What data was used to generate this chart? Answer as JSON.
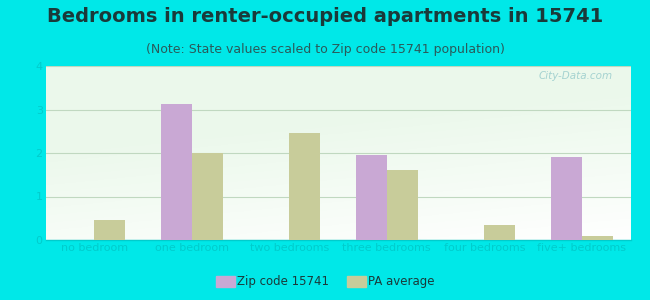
{
  "title": "Bedrooms in renter-occupied apartments in 15741",
  "subtitle": "(Note: State values scaled to Zip code 15741 population)",
  "categories": [
    "no bedroom",
    "one bedroom",
    "two bedrooms",
    "three bedrooms",
    "four bedrooms",
    "five+ bedrooms"
  ],
  "zip_values": [
    0,
    3.12,
    0,
    1.95,
    0,
    1.9
  ],
  "pa_values": [
    0.45,
    2.0,
    2.45,
    1.6,
    0.35,
    0.09
  ],
  "zip_color": "#c9a8d4",
  "pa_color": "#c8cc9a",
  "background_outer": "#00e8e8",
  "ylim": [
    0,
    4
  ],
  "yticks": [
    0,
    1,
    2,
    3,
    4
  ],
  "bar_width": 0.32,
  "zip_label": "Zip code 15741",
  "pa_label": "PA average",
  "watermark": "City-Data.com",
  "title_fontsize": 14,
  "subtitle_fontsize": 9,
  "tick_fontsize": 8,
  "grid_color": "#c0d8c0",
  "title_color": "#1a3a3a",
  "subtitle_color": "#2a5a5a",
  "tick_color": "#00cccc"
}
